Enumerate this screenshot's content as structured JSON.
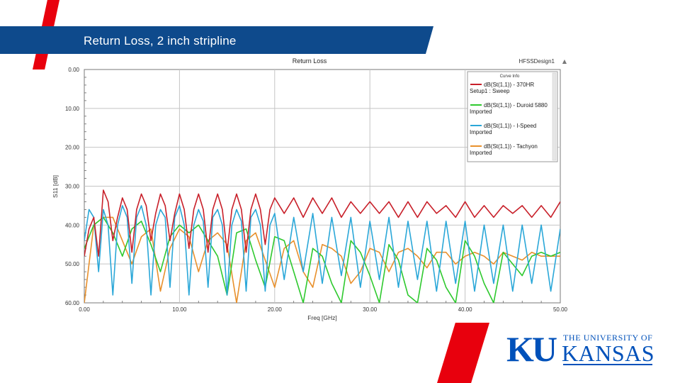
{
  "slide": {
    "title": "Return Loss, 2 inch stripline",
    "accent_red": "#e8000d",
    "bar_blue": "#0e4a8c"
  },
  "logo": {
    "letters": "KU",
    "university_line": "THE UNIVERSITY OF",
    "name_line": "KANSAS",
    "color": "#0051ba"
  },
  "chart_data": {
    "type": "line",
    "title": "Return Loss",
    "design_label": "HFSSDesign1",
    "xlabel": "Freq [GHz]",
    "ylabel": "S11 [dB]",
    "xlim": [
      0,
      50
    ],
    "ylim": [
      0,
      60
    ],
    "y_inverted": true,
    "x_ticks": [
      "0.00",
      "10.00",
      "20.00",
      "30.00",
      "40.00",
      "50.00"
    ],
    "y_ticks": [
      "0.00",
      "10.00",
      "20.00",
      "30.00",
      "40.00",
      "50.00",
      "60.00"
    ],
    "grid": true,
    "legend_title": "Curve Info",
    "legend_position": "top-right",
    "series": [
      {
        "name": "dB(St(1,1)) - 370HR",
        "sub": "Setup1 : Sweep",
        "color": "#c8202a",
        "x": [
          0,
          0.5,
          1.0,
          1.5,
          2.0,
          2.5,
          3.0,
          3.5,
          4.0,
          4.5,
          5.0,
          5.5,
          6.0,
          6.5,
          7.0,
          7.5,
          8.0,
          8.5,
          9.0,
          9.5,
          10.0,
          10.5,
          11.0,
          11.5,
          12.0,
          12.5,
          13.0,
          13.5,
          14.0,
          14.5,
          15.0,
          15.5,
          16.0,
          16.5,
          17.0,
          17.5,
          18.0,
          18.5,
          19.0,
          19.5,
          20.0,
          21.0,
          22.0,
          23.0,
          24.0,
          25.0,
          26.0,
          27.0,
          28.0,
          29.0,
          30.0,
          31.0,
          32.0,
          33.0,
          34.0,
          35.0,
          36.0,
          37.0,
          38.0,
          39.0,
          40.0,
          41.0,
          42.0,
          43.0,
          44.0,
          45.0,
          46.0,
          47.0,
          48.0,
          49.0,
          50.0
        ],
        "y": [
          48,
          41,
          38,
          48,
          31,
          34,
          44,
          38,
          33,
          36,
          47,
          36,
          32,
          35,
          44,
          37,
          32,
          35,
          44,
          37,
          32,
          36,
          46,
          36,
          32,
          36,
          47,
          36,
          32,
          36,
          47,
          36,
          32,
          36,
          47,
          36,
          32,
          36,
          45,
          36,
          33,
          37,
          33,
          38,
          33,
          37,
          33,
          38,
          34,
          37,
          34,
          37,
          34,
          38,
          34,
          38,
          34,
          37,
          35,
          38,
          34,
          38,
          35,
          38,
          35,
          37,
          35,
          38,
          35,
          38,
          34
        ]
      },
      {
        "name": "dB(St(1,1)) - Duroid 5880",
        "sub": "Imported",
        "color": "#2ec92e",
        "x": [
          0,
          1,
          2,
          3,
          4,
          5,
          6,
          7,
          8,
          9,
          10,
          11,
          12,
          13,
          14,
          15,
          16,
          17,
          18,
          19,
          20,
          21,
          22,
          23,
          24,
          25,
          26,
          27,
          28,
          29,
          30,
          31,
          32,
          33,
          34,
          35,
          36,
          37,
          38,
          39,
          40,
          41,
          42,
          43,
          44,
          45,
          46,
          47,
          48,
          49,
          50
        ],
        "y": [
          46,
          40,
          38,
          42,
          48,
          41,
          39,
          45,
          52,
          43,
          40,
          42,
          40,
          44,
          48,
          58,
          42,
          41,
          49,
          56,
          43,
          44,
          52,
          60,
          46,
          48,
          55,
          60,
          44,
          47,
          53,
          60,
          45,
          49,
          58,
          60,
          46,
          49,
          56,
          60,
          44,
          48,
          55,
          60,
          47,
          50,
          53,
          48,
          47,
          48,
          47
        ]
      },
      {
        "name": "dB(St(1,1)) - I-Speed",
        "sub": "Imported",
        "color": "#2aa7d8",
        "x": [
          0,
          0.5,
          1.0,
          1.5,
          2.0,
          2.5,
          3.0,
          3.5,
          4.0,
          4.5,
          5.0,
          5.5,
          6.0,
          6.5,
          7.0,
          7.5,
          8.0,
          8.5,
          9.0,
          9.5,
          10.0,
          10.5,
          11.0,
          11.5,
          12.0,
          12.5,
          13.0,
          13.5,
          14.0,
          14.5,
          15.0,
          15.5,
          16.0,
          16.5,
          17.0,
          17.5,
          18.0,
          18.5,
          19.0,
          19.5,
          20.0,
          21.0,
          22.0,
          23.0,
          24.0,
          25.0,
          26.0,
          27.0,
          28.0,
          29.0,
          30.0,
          31.0,
          32.0,
          33.0,
          34.0,
          35.0,
          36.0,
          37.0,
          38.0,
          39.0,
          40.0,
          41.0,
          42.0,
          43.0,
          44.0,
          45.0,
          46.0,
          47.0,
          48.0,
          49.0,
          50.0
        ],
        "y": [
          44,
          36,
          38,
          52,
          36,
          40,
          58,
          40,
          35,
          38,
          55,
          38,
          35,
          40,
          58,
          40,
          36,
          38,
          56,
          38,
          35,
          40,
          58,
          40,
          36,
          39,
          56,
          38,
          36,
          40,
          58,
          40,
          36,
          39,
          57,
          38,
          36,
          40,
          57,
          40,
          37,
          54,
          38,
          52,
          37,
          55,
          38,
          53,
          38,
          56,
          39,
          54,
          38,
          56,
          39,
          54,
          39,
          57,
          39,
          55,
          39,
          57,
          40,
          55,
          40,
          57,
          40,
          55,
          40,
          57,
          41
        ]
      },
      {
        "name": "dB(St(1,1)) - Tachyon",
        "sub": "Imported",
        "color": "#e8902c",
        "x": [
          0,
          1,
          2,
          3,
          4,
          5,
          6,
          7,
          8,
          9,
          10,
          11,
          12,
          13,
          14,
          15,
          16,
          17,
          18,
          19,
          20,
          21,
          22,
          23,
          24,
          25,
          26,
          27,
          28,
          29,
          30,
          31,
          32,
          33,
          34,
          35,
          36,
          37,
          38,
          39,
          40,
          41,
          42,
          43,
          44,
          45,
          46,
          47,
          48,
          49,
          50
        ],
        "y": [
          60,
          40,
          38,
          38,
          44,
          50,
          43,
          41,
          57,
          46,
          41,
          43,
          52,
          44,
          42,
          45,
          60,
          44,
          42,
          49,
          56,
          46,
          44,
          52,
          56,
          45,
          46,
          48,
          55,
          52,
          46,
          47,
          52,
          47,
          46,
          48,
          51,
          47,
          47,
          50,
          48,
          47,
          48,
          50,
          47,
          48,
          49,
          47,
          48,
          48,
          48
        ]
      }
    ]
  }
}
